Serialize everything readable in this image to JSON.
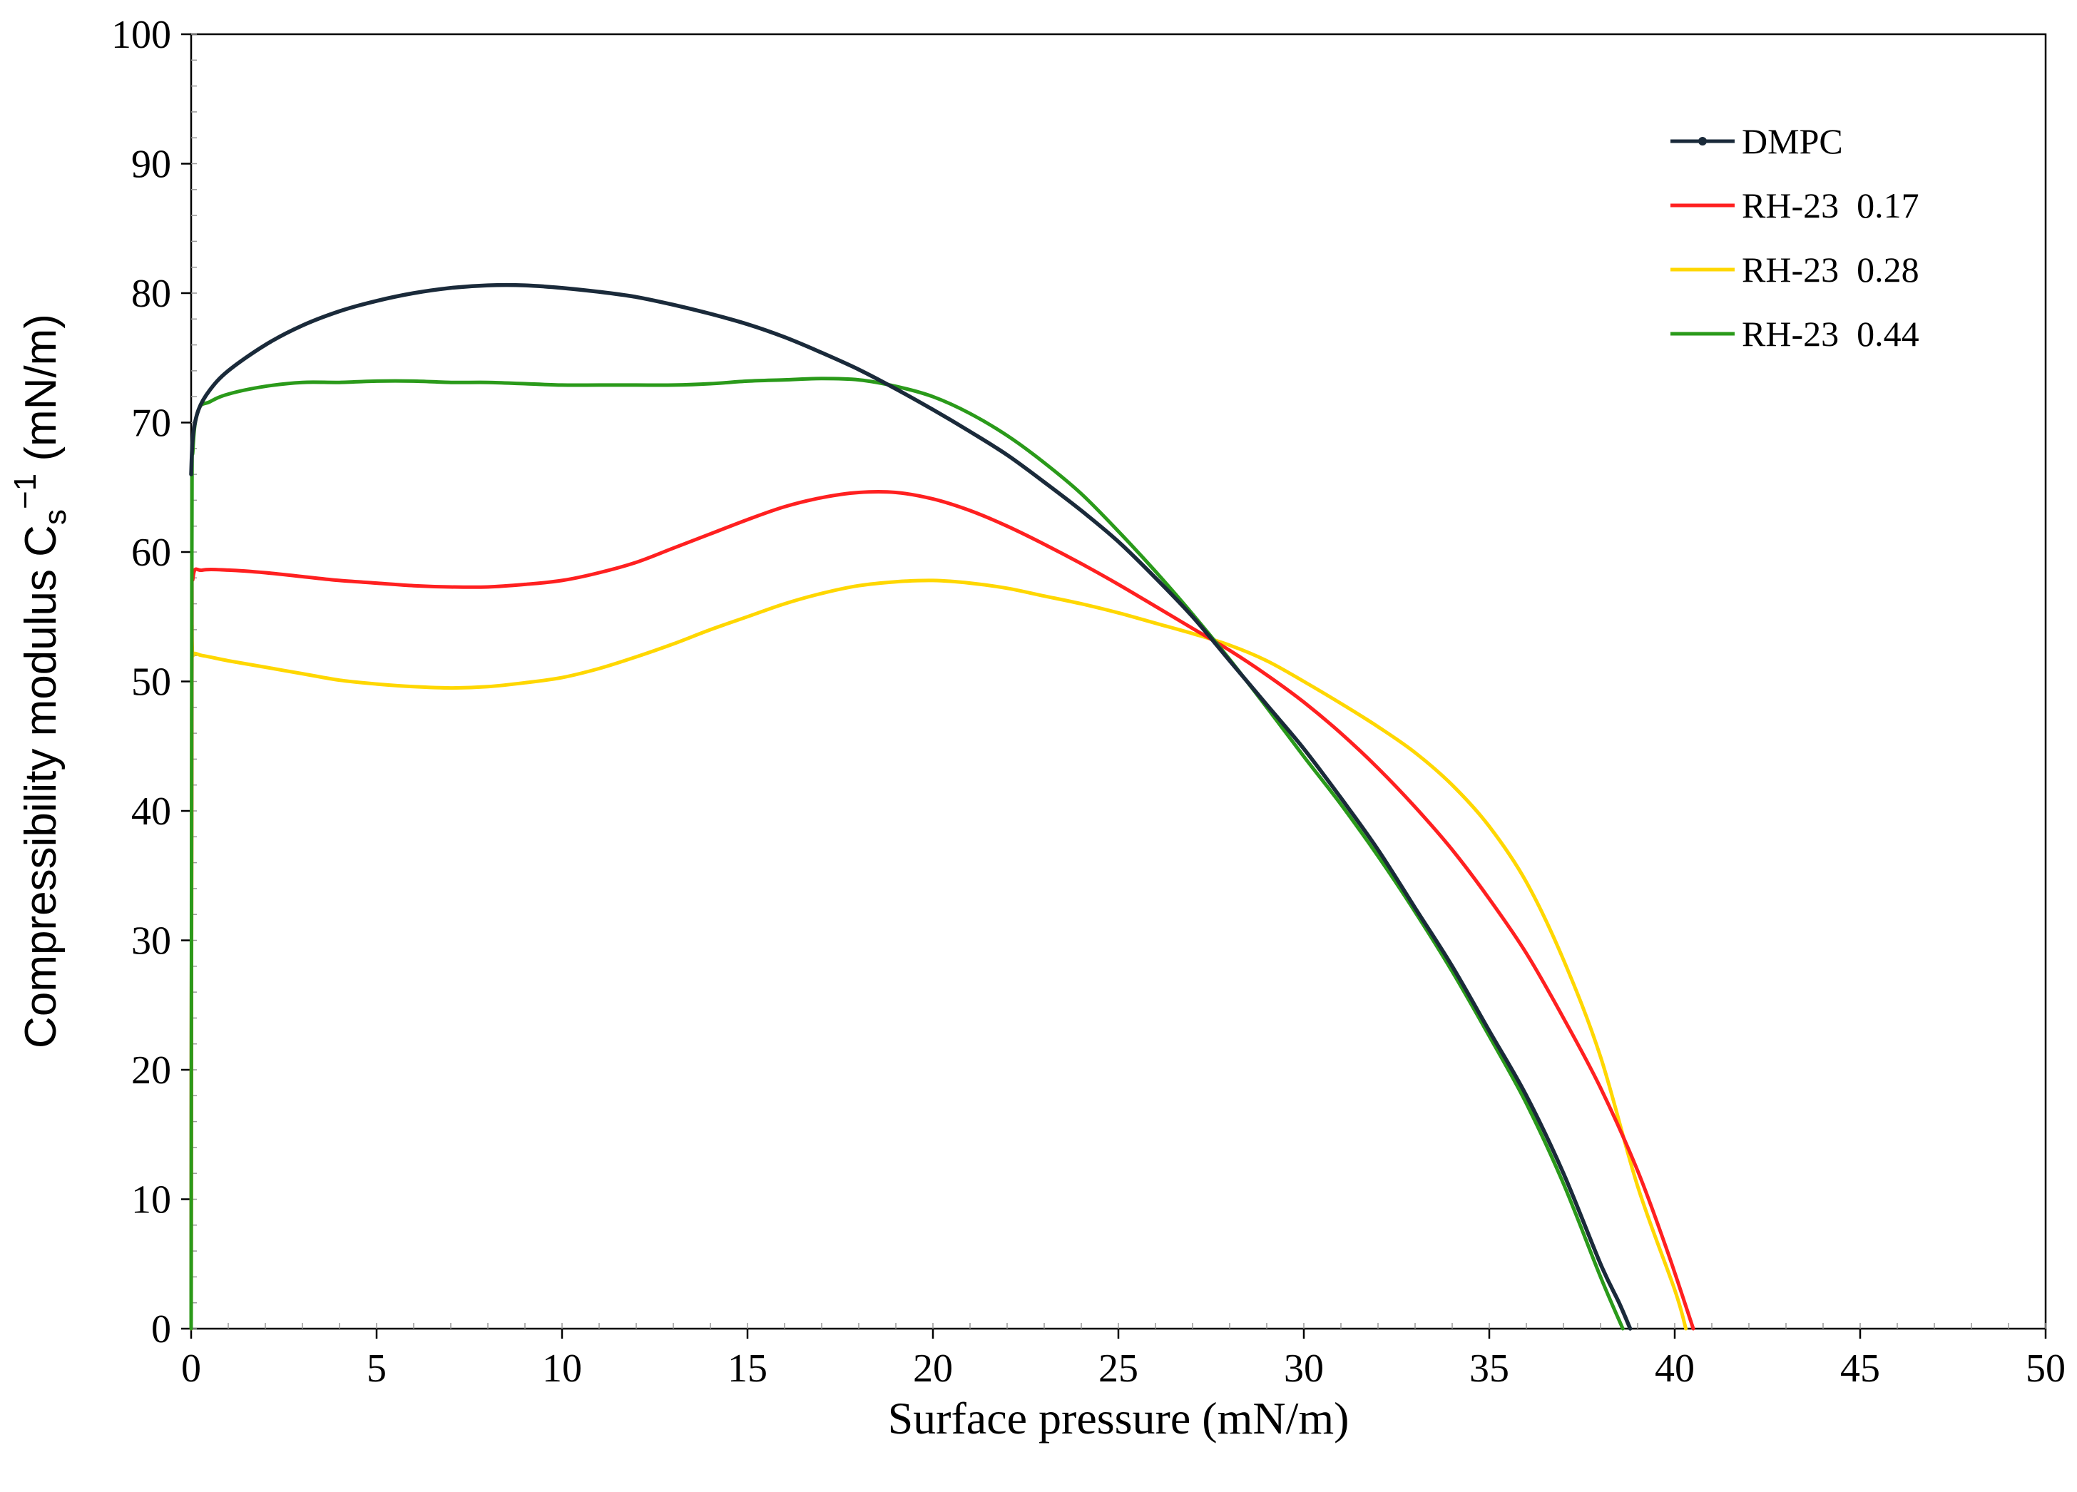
{
  "chart_data": {
    "type": "line",
    "title": "",
    "xlabel": "Surface pressure (mN/m)",
    "ylabel": {
      "main": "Compressibility modulus C",
      "subscript": "s",
      "superscript": "−1",
      "unit": " (mN/m)"
    },
    "xlim": [
      0,
      50
    ],
    "ylim": [
      0,
      100
    ],
    "xticks": [
      0,
      5,
      10,
      15,
      20,
      25,
      30,
      35,
      40,
      45,
      50
    ],
    "yticks": [
      0,
      10,
      20,
      30,
      40,
      50,
      60,
      70,
      80,
      90,
      100
    ],
    "grid": false,
    "legend_position": "top-right",
    "series": [
      {
        "name": "DMPC",
        "color": "#1a2a3a",
        "marker": "small-dot",
        "points": [
          [
            0,
            66
          ],
          [
            0.05,
            69
          ],
          [
            0.2,
            71
          ],
          [
            0.5,
            72.5
          ],
          [
            1,
            74
          ],
          [
            2,
            76
          ],
          [
            3,
            77.5
          ],
          [
            4,
            78.6
          ],
          [
            5,
            79.4
          ],
          [
            6,
            80
          ],
          [
            7,
            80.4
          ],
          [
            8,
            80.6
          ],
          [
            9,
            80.6
          ],
          [
            10,
            80.4
          ],
          [
            11,
            80.1
          ],
          [
            12,
            79.7
          ],
          [
            13,
            79.1
          ],
          [
            14,
            78.4
          ],
          [
            15,
            77.6
          ],
          [
            16,
            76.6
          ],
          [
            17,
            75.4
          ],
          [
            18,
            74.1
          ],
          [
            19,
            72.6
          ],
          [
            20,
            71
          ],
          [
            21,
            69.3
          ],
          [
            22,
            67.5
          ],
          [
            23,
            65.4
          ],
          [
            24,
            63.2
          ],
          [
            25,
            60.8
          ],
          [
            26,
            58
          ],
          [
            27,
            55
          ],
          [
            28,
            51.6
          ],
          [
            29,
            48.2
          ],
          [
            30,
            44.8
          ],
          [
            31,
            41
          ],
          [
            32,
            37
          ],
          [
            33,
            32.5
          ],
          [
            34,
            28
          ],
          [
            35,
            23
          ],
          [
            36,
            18
          ],
          [
            37,
            12
          ],
          [
            38,
            5
          ],
          [
            38.5,
            2
          ],
          [
            38.8,
            0
          ]
        ]
      },
      {
        "name": "RH-23  0.17",
        "color": "#ff2020",
        "marker": "none",
        "points": [
          [
            0,
            0
          ],
          [
            0.02,
            52
          ],
          [
            0.05,
            58
          ],
          [
            0.3,
            58.6
          ],
          [
            1,
            58.6
          ],
          [
            2,
            58.4
          ],
          [
            3,
            58.1
          ],
          [
            4,
            57.8
          ],
          [
            5,
            57.6
          ],
          [
            6,
            57.4
          ],
          [
            7,
            57.3
          ],
          [
            8,
            57.3
          ],
          [
            9,
            57.5
          ],
          [
            10,
            57.8
          ],
          [
            11,
            58.4
          ],
          [
            12,
            59.2
          ],
          [
            13,
            60.3
          ],
          [
            14,
            61.4
          ],
          [
            15,
            62.5
          ],
          [
            16,
            63.5
          ],
          [
            17,
            64.2
          ],
          [
            18,
            64.6
          ],
          [
            19,
            64.6
          ],
          [
            20,
            64.1
          ],
          [
            21,
            63.2
          ],
          [
            22,
            62
          ],
          [
            23,
            60.6
          ],
          [
            24,
            59.1
          ],
          [
            25,
            57.5
          ],
          [
            26,
            55.8
          ],
          [
            27,
            54.1
          ],
          [
            28,
            52.4
          ],
          [
            29,
            50.5
          ],
          [
            30,
            48.4
          ],
          [
            31,
            46
          ],
          [
            32,
            43.3
          ],
          [
            33,
            40.3
          ],
          [
            34,
            37
          ],
          [
            35,
            33.2
          ],
          [
            36,
            29
          ],
          [
            37,
            24
          ],
          [
            38,
            18.6
          ],
          [
            39,
            12.2
          ],
          [
            39.8,
            6
          ],
          [
            40.5,
            0
          ]
        ]
      },
      {
        "name": "RH-23  0.28",
        "color": "#ffd700",
        "marker": "none",
        "points": [
          [
            0,
            0
          ],
          [
            0.02,
            50
          ],
          [
            0.05,
            52
          ],
          [
            0.3,
            52
          ],
          [
            1,
            51.6
          ],
          [
            2,
            51.1
          ],
          [
            3,
            50.6
          ],
          [
            4,
            50.1
          ],
          [
            5,
            49.8
          ],
          [
            6,
            49.6
          ],
          [
            7,
            49.5
          ],
          [
            8,
            49.6
          ],
          [
            9,
            49.9
          ],
          [
            10,
            50.3
          ],
          [
            11,
            51
          ],
          [
            12,
            51.9
          ],
          [
            13,
            52.9
          ],
          [
            14,
            54
          ],
          [
            15,
            55
          ],
          [
            16,
            56
          ],
          [
            17,
            56.8
          ],
          [
            18,
            57.4
          ],
          [
            19,
            57.7
          ],
          [
            20,
            57.8
          ],
          [
            21,
            57.6
          ],
          [
            22,
            57.2
          ],
          [
            23,
            56.6
          ],
          [
            24,
            56
          ],
          [
            25,
            55.3
          ],
          [
            26,
            54.5
          ],
          [
            27,
            53.7
          ],
          [
            28,
            52.8
          ],
          [
            29,
            51.6
          ],
          [
            30,
            50
          ],
          [
            31,
            48.3
          ],
          [
            32,
            46.5
          ],
          [
            33,
            44.5
          ],
          [
            34,
            42
          ],
          [
            35,
            38.8
          ],
          [
            36,
            34.5
          ],
          [
            37,
            28.5
          ],
          [
            38,
            21
          ],
          [
            39,
            11
          ],
          [
            40,
            3
          ],
          [
            40.3,
            0
          ]
        ]
      },
      {
        "name": "RH-23  0.44",
        "color": "#2a9a1a",
        "marker": "none",
        "points": [
          [
            0,
            0
          ],
          [
            0.02,
            60
          ],
          [
            0.05,
            68
          ],
          [
            0.2,
            71
          ],
          [
            0.5,
            71.6
          ],
          [
            1,
            72.2
          ],
          [
            2,
            72.8
          ],
          [
            3,
            73.1
          ],
          [
            4,
            73.1
          ],
          [
            5,
            73.2
          ],
          [
            6,
            73.2
          ],
          [
            7,
            73.1
          ],
          [
            8,
            73.1
          ],
          [
            9,
            73
          ],
          [
            10,
            72.9
          ],
          [
            11,
            72.9
          ],
          [
            12,
            72.9
          ],
          [
            13,
            72.9
          ],
          [
            14,
            73
          ],
          [
            15,
            73.2
          ],
          [
            16,
            73.3
          ],
          [
            17,
            73.4
          ],
          [
            18,
            73.3
          ],
          [
            19,
            72.8
          ],
          [
            20,
            72
          ],
          [
            21,
            70.7
          ],
          [
            22,
            69
          ],
          [
            23,
            66.9
          ],
          [
            24,
            64.5
          ],
          [
            25,
            61.6
          ],
          [
            26,
            58.5
          ],
          [
            27,
            55.2
          ],
          [
            28,
            51.7
          ],
          [
            29,
            48
          ],
          [
            30,
            44.2
          ],
          [
            31,
            40.5
          ],
          [
            32,
            36.5
          ],
          [
            33,
            32.2
          ],
          [
            34,
            27.6
          ],
          [
            35,
            22.6
          ],
          [
            36,
            17.4
          ],
          [
            37,
            11.2
          ],
          [
            38,
            4
          ],
          [
            38.6,
            0
          ]
        ]
      }
    ]
  }
}
